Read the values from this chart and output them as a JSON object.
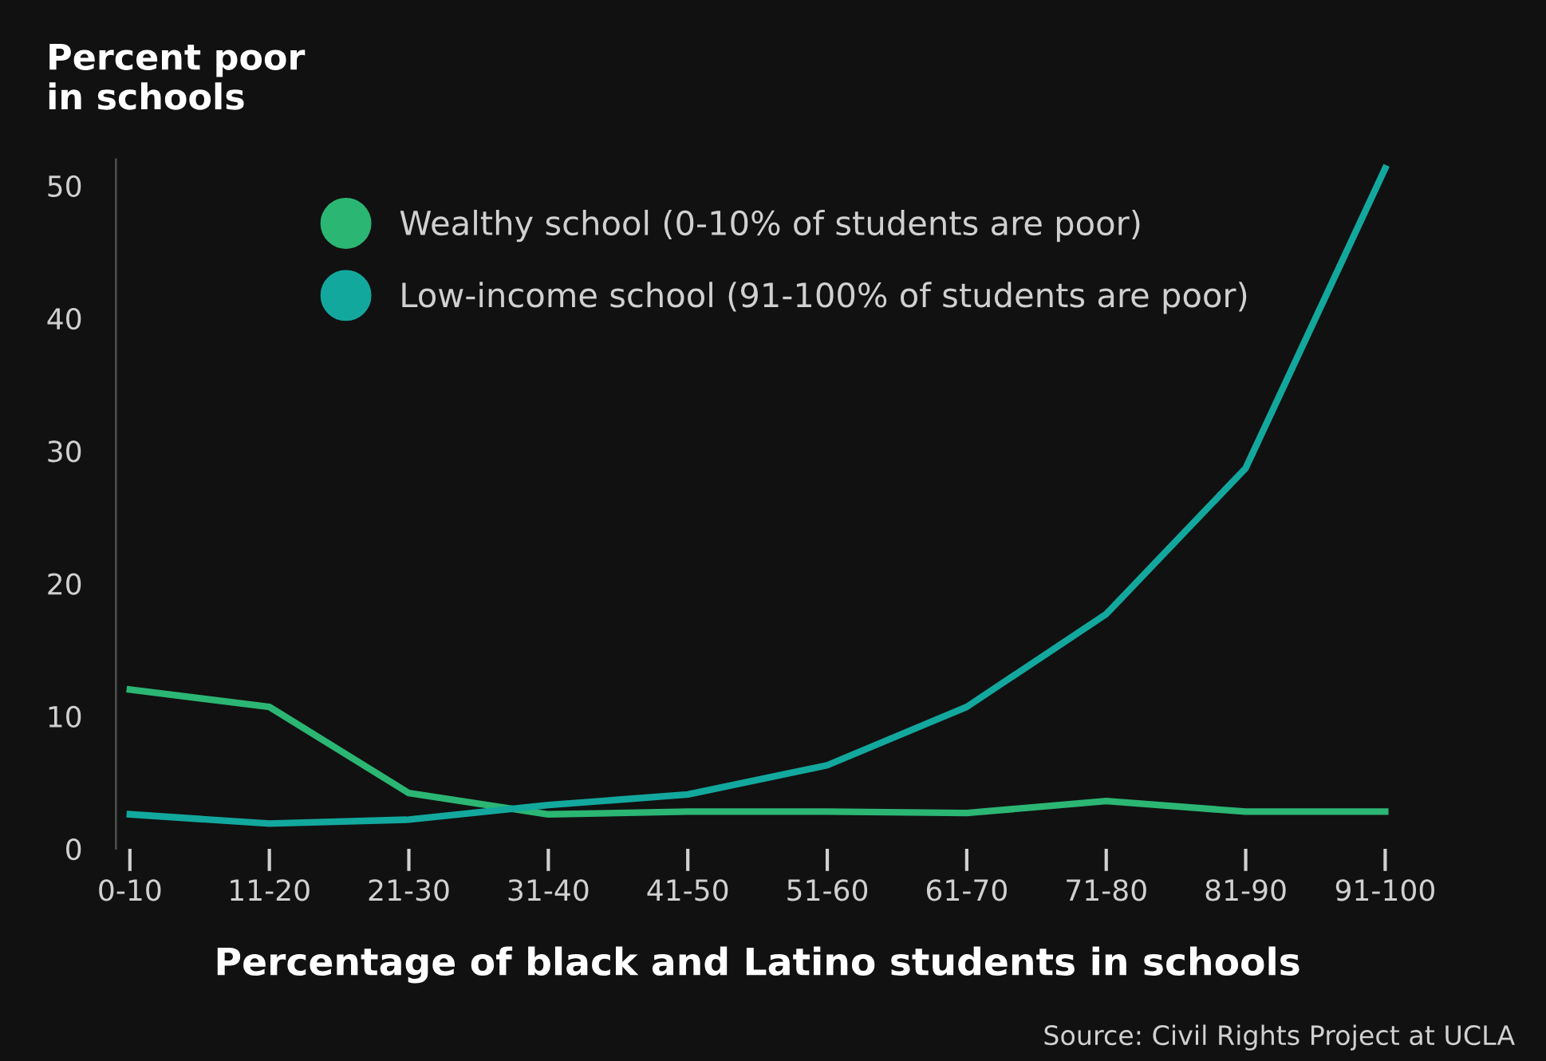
{
  "chart_data": {
    "type": "line",
    "ylabel": "Percent poor\nin schools",
    "xlabel": "Percentage of black and Latino students in schools",
    "categories": [
      "0-10",
      "11-20",
      "21-30",
      "31-40",
      "41-50",
      "51-60",
      "61-70",
      "71-80",
      "81-90",
      "91-100"
    ],
    "series": [
      {
        "name": "Wealthy school (0-10% of students are poor)",
        "color": "#2bb673",
        "values": [
          12.0,
          10.7,
          4.2,
          2.6,
          2.8,
          2.8,
          2.7,
          3.6,
          2.8,
          2.8
        ]
      },
      {
        "name": "Low-income school (91-100% of students are poor)",
        "color": "#13a89e",
        "values": [
          2.6,
          1.9,
          2.2,
          3.3,
          4.1,
          6.3,
          10.7,
          17.7,
          28.7,
          51.3
        ]
      }
    ],
    "ylim": [
      0,
      52
    ],
    "yticks": [
      0,
      10,
      20,
      30,
      40,
      50
    ],
    "grid": false,
    "legend": "top left",
    "marker": "none",
    "line_style": "solid",
    "annotations": [
      "Source: Civil Rights Project at UCLA"
    ]
  }
}
